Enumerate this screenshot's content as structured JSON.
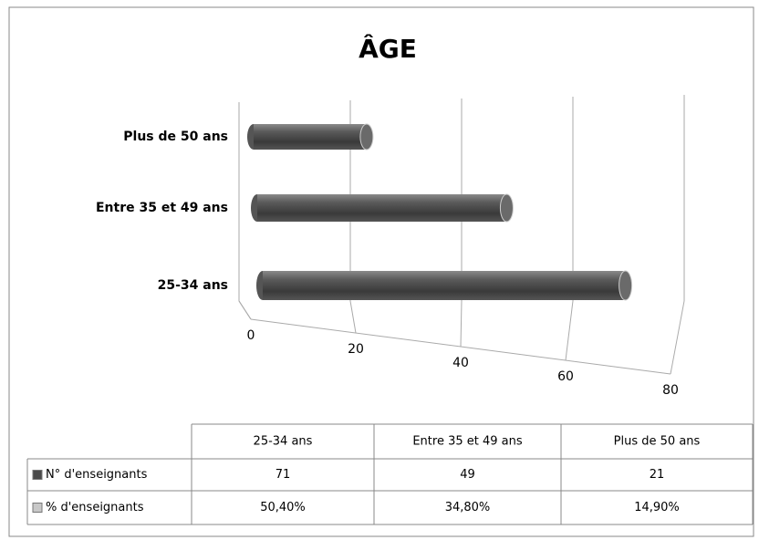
{
  "chart_data": {
    "type": "bar",
    "orientation": "horizontal",
    "title": "ÂGE",
    "categories": [
      "25-34 ans",
      "Entre 35 et 49 ans",
      "Plus de 50 ans"
    ],
    "series": [
      {
        "name": "N° d'enseignants",
        "color": "#4a4a4a",
        "values": [
          71,
          49,
          21
        ]
      },
      {
        "name": "% d'enseignants",
        "color": "#c8c8c8",
        "values": [
          50.4,
          34.8,
          14.9
        ],
        "value_labels": [
          "50,40%",
          "34,80%",
          "14,90%"
        ]
      }
    ],
    "xlim": [
      0,
      80
    ],
    "xticks": [
      0,
      20,
      40,
      60,
      80
    ],
    "grid": true
  }
}
